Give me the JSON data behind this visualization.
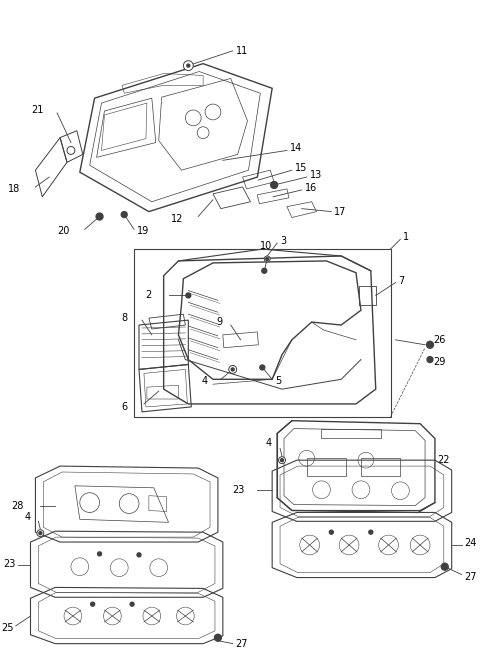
{
  "bg_color": "#ffffff",
  "fig_width": 4.8,
  "fig_height": 6.55,
  "dpi": 100,
  "line_color": "#404040",
  "text_color": "#000000",
  "label_fontsize": 7.0
}
